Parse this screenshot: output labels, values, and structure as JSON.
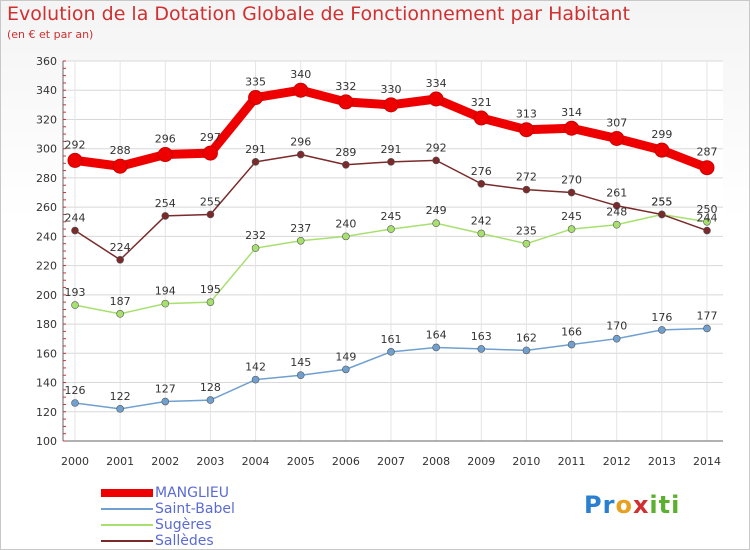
{
  "header": {
    "title": "Evolution de la Dotation Globale de Fonctionnement par Habitant",
    "subtitle": "(en € et par an)"
  },
  "logo": {
    "p": "Pr",
    "o": "o",
    "x": "x",
    "i": "iti"
  },
  "chart_data": {
    "type": "line",
    "title": "Evolution de la Dotation Globale de Fonctionnement par Habitant",
    "subtitle": "(en € et par an)",
    "xlabel": "",
    "ylabel": "",
    "x": [
      "2000",
      "2001",
      "2002",
      "2003",
      "2004",
      "2005",
      "2006",
      "2007",
      "2008",
      "2009",
      "2010",
      "2011",
      "2012",
      "2013",
      "2014"
    ],
    "ylim": [
      100,
      360
    ],
    "yticks": [
      100,
      120,
      140,
      160,
      180,
      200,
      220,
      240,
      260,
      280,
      300,
      320,
      340,
      360
    ],
    "grid": true,
    "legend": "bottom-left",
    "series": [
      {
        "name": "MANGLIEU",
        "color": "#ee0000",
        "values": [
          292,
          288,
          296,
          297,
          335,
          340,
          332,
          330,
          334,
          321,
          313,
          314,
          307,
          299,
          287
        ]
      },
      {
        "name": "Saint-Babel",
        "color": "#6fa0d0",
        "values": [
          126,
          122,
          127,
          128,
          142,
          145,
          149,
          161,
          164,
          163,
          162,
          166,
          170,
          176,
          177
        ]
      },
      {
        "name": "Sugères",
        "color": "#a8e070",
        "values": [
          193,
          187,
          194,
          195,
          232,
          237,
          240,
          245,
          249,
          242,
          235,
          245,
          248,
          255,
          250
        ]
      },
      {
        "name": "Sallèdes",
        "color": "#7a2a2a",
        "values": [
          244,
          224,
          254,
          255,
          291,
          296,
          289,
          291,
          292,
          276,
          272,
          270,
          261,
          255,
          244
        ]
      }
    ]
  }
}
